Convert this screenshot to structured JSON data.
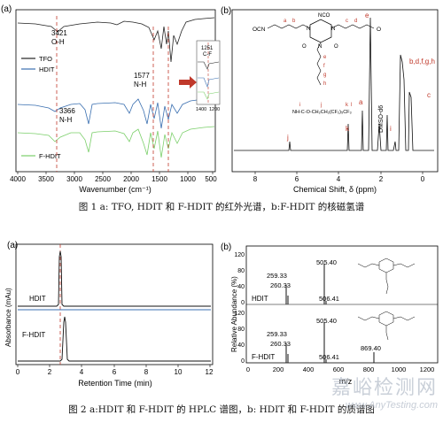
{
  "figure1": {
    "panel_a": {
      "label": "(a)",
      "xlabel": "Wavenumber (cm⁻¹)",
      "xticks": [
        "4000",
        "3500",
        "3000",
        "2500",
        "2000",
        "1500",
        "1000",
        "500"
      ],
      "legend": [
        "TFO",
        "HDIT",
        "F-HDIT"
      ],
      "annotations": [
        "3421",
        "O-H",
        "1577",
        "N-H",
        "3366",
        "N-H",
        "1251",
        "C-F"
      ],
      "inset_ticks": [
        "1400",
        "1200"
      ]
    },
    "panel_b": {
      "label": "(b)",
      "xlabel": "Chemical Shift, δ (ppm)",
      "xticks": [
        "8",
        "6",
        "4",
        "2",
        "0"
      ],
      "peak_labels": [
        "e",
        "a",
        "k",
        "j",
        "i",
        "b,d,f,g,h",
        "c",
        "DMSO-d6"
      ],
      "structure_text": [
        "OCN",
        "NCO",
        "O",
        "O",
        "O",
        "N",
        "N",
        "N",
        "a",
        "b",
        "c",
        "d",
        "e",
        "f",
        "g",
        "h",
        "i",
        "j",
        "k",
        "l"
      ],
      "chain_text": "NH-C-O-CH₂CH₂(CF₂)₅CF₃"
    },
    "caption": "图 1 a: TFO, HDIT 和 F-HDIT 的红外光谱，b:F-HDIT 的核磁氢谱"
  },
  "figure2": {
    "panel_a": {
      "label": "(a)",
      "xlabel": "Retention Time (min)",
      "ylabel": "Absorbance (mAu)",
      "xticks": [
        "0",
        "2",
        "4",
        "6",
        "8",
        "10",
        "12"
      ],
      "trace_labels": [
        "HDIT",
        "F-HDIT"
      ]
    },
    "panel_b": {
      "label": "(b)",
      "xlabel": "m/z",
      "ylabel": "Relative Abundance (%)",
      "xticks": [
        "0",
        "200",
        "400",
        "600",
        "800",
        "1000",
        "1200"
      ],
      "yticks_top": [
        "120",
        "80",
        "40",
        "0"
      ],
      "yticks_bottom": [
        "120",
        "80",
        "40",
        "0"
      ],
      "top_label": "HDIT",
      "bottom_label": "F-HDIT",
      "top_peaks": [
        "505.40",
        "259.33",
        "260.33",
        "506.41"
      ],
      "bottom_peaks": [
        "505.40",
        "259.33",
        "260.33",
        "506.41",
        "869.40"
      ]
    },
    "caption": "图 2 a:HDIT 和 F-HDIT 的 HPLC 谱图，b: HDIT 和 F-HDIT 的质谱图"
  },
  "watermark": {
    "cn": "嘉峪检测网",
    "en": "www.AnyTesting.com"
  }
}
